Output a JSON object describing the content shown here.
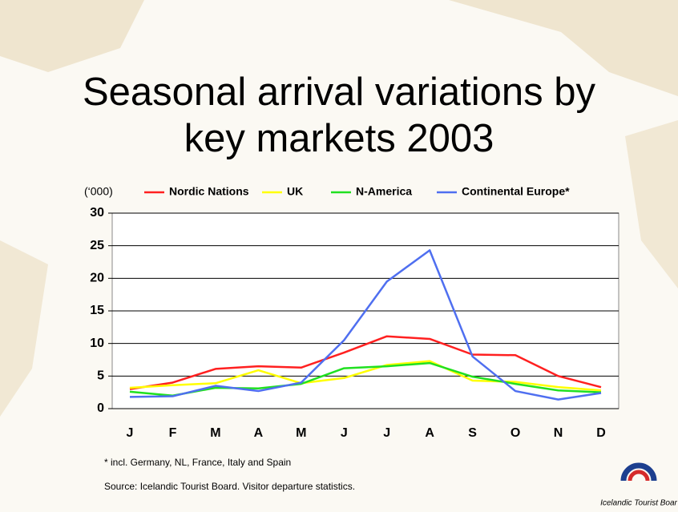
{
  "chart_data": {
    "type": "line",
    "title": "Seasonal arrival variations by key markets 2003",
    "y_unit_label": "(‘000)",
    "categories": [
      "J",
      "F",
      "M",
      "A",
      "M",
      "J",
      "J",
      "A",
      "S",
      "O",
      "N",
      "D"
    ],
    "series": [
      {
        "name": "Nordic Nations",
        "color": "#ff2020",
        "values": [
          3.0,
          4.0,
          6.1,
          6.5,
          6.3,
          8.6,
          11.1,
          10.7,
          8.3,
          8.2,
          5.0,
          3.3
        ]
      },
      {
        "name": "UK",
        "color": "#ffff00",
        "values": [
          3.2,
          3.6,
          3.9,
          5.9,
          3.9,
          4.7,
          6.7,
          7.3,
          4.3,
          4.1,
          3.3,
          2.8
        ]
      },
      {
        "name": "N-America",
        "color": "#20e020",
        "values": [
          2.6,
          2.0,
          3.2,
          3.1,
          3.8,
          6.2,
          6.5,
          7.0,
          4.9,
          3.8,
          2.8,
          2.5
        ]
      },
      {
        "name": "Continental Europe*",
        "color": "#4f6ff0",
        "values": [
          1.8,
          1.9,
          3.5,
          2.7,
          4.0,
          10.5,
          19.5,
          24.3,
          8.0,
          2.7,
          1.4,
          2.4
        ]
      }
    ],
    "ylim": [
      0,
      30
    ],
    "yticks": [
      0,
      5,
      10,
      15,
      20,
      25,
      30
    ],
    "grid": true,
    "footnote": "* incl. Germany, NL, France, Italy and Spain",
    "source": "Source: Icelandic Tourist Board. Visitor departure statistics.",
    "logo_text": "Icelandic Tourist Boar"
  }
}
